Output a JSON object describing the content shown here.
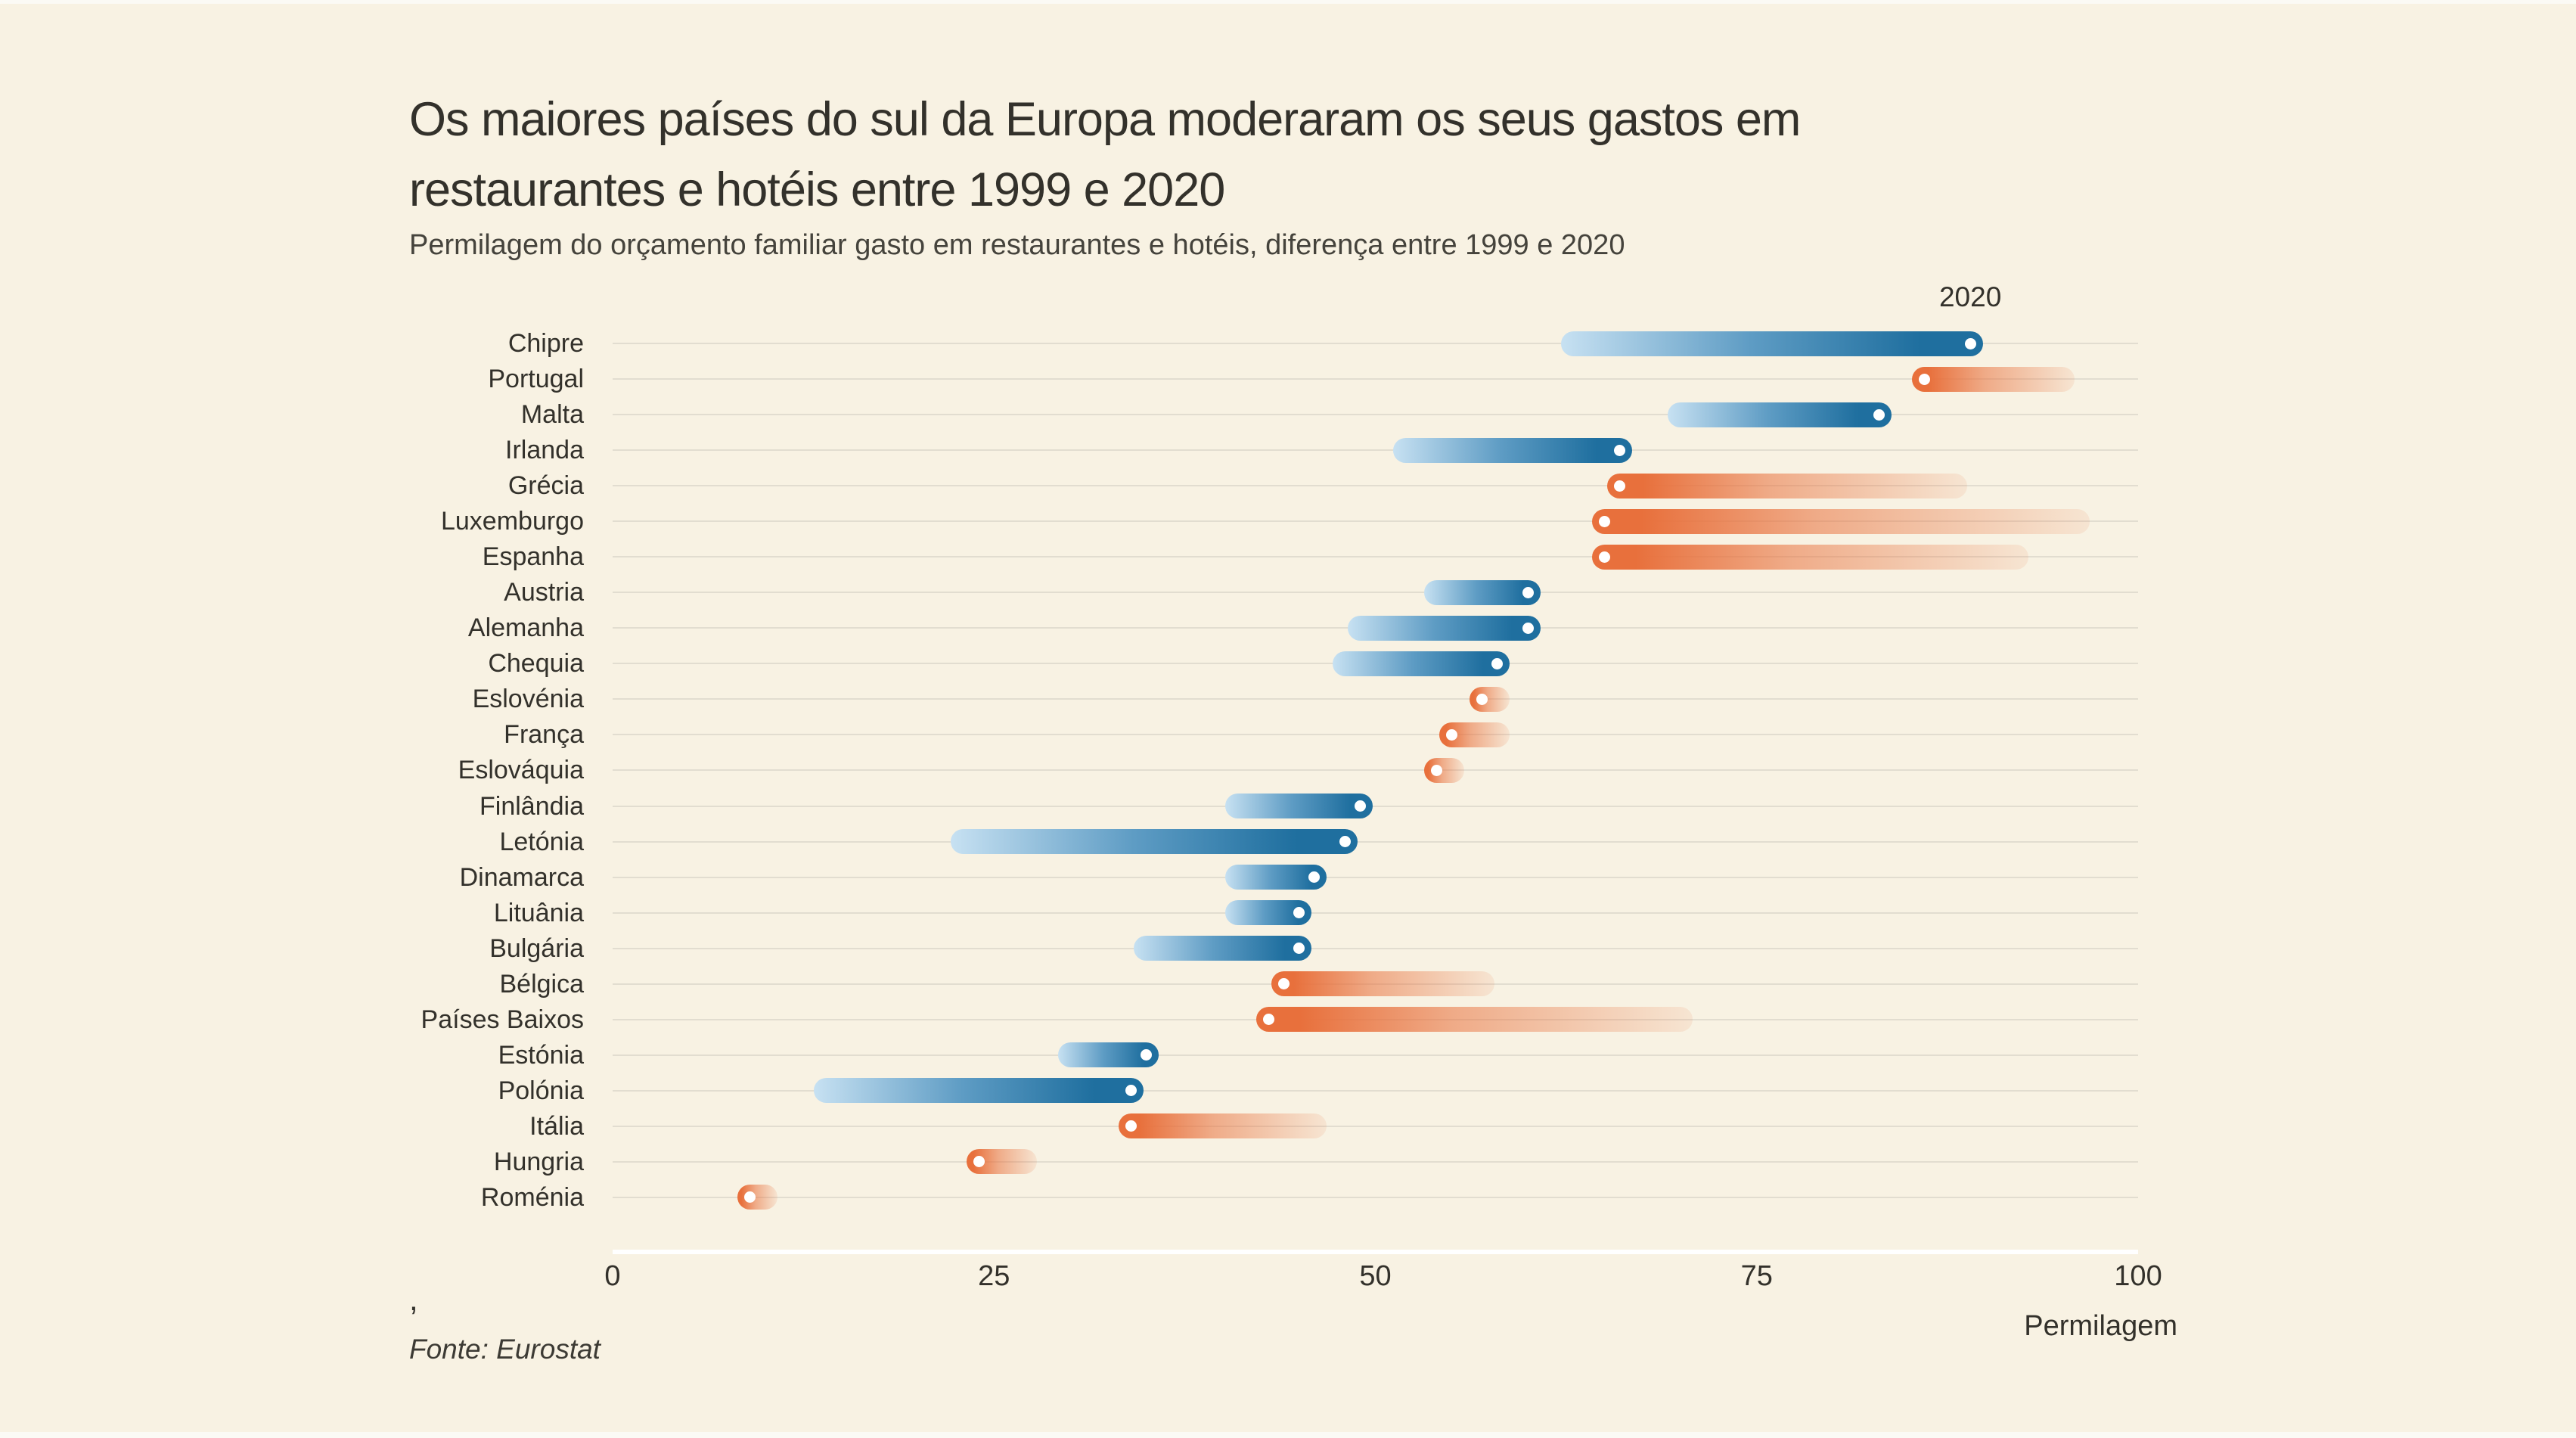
{
  "title": {
    "line1": "Os maiores países do sul da Europa moderaram os seus gastos em",
    "line2": "restaurantes e hotéis entre 1999 e 2020"
  },
  "subtitle": "Permilagem do orçamento familiar gasto em restaurantes e hotéis, diferença entre 1999 e 2020",
  "legend": {
    "year_2020_label": "2020"
  },
  "axis": {
    "tick_values": [
      0,
      25,
      50,
      75,
      100
    ],
    "unit_label": "Permilagem",
    "min": 0,
    "max": 100
  },
  "source": {
    "comma": ",",
    "text": "Fonte: Eurostat"
  },
  "colors": {
    "background": "#f8f2e3",
    "increase_dark": "#1f6f9f",
    "increase_light": "#c7e1f2",
    "decrease_orange": "#e8703c",
    "gridline": "#e2ddd0",
    "axis_line": "#ffffff",
    "text": "#33312b"
  },
  "chart_data": {
    "type": "dumbbell",
    "title": "Os maiores países do sul da Europa moderaram os seus gastos em restaurantes e hotéis entre 1999 e 2020",
    "subtitle": "Permilagem do orçamento familiar gasto em restaurantes e hotéis, diferença entre 1999 e 2020",
    "unit": "permilagem",
    "xlim": [
      0,
      100
    ],
    "grid": "horizontal",
    "years": [
      "1999",
      "2020"
    ],
    "dot_marks_year": "2020",
    "countries": [
      {
        "label": "Chipre",
        "y1999": 63,
        "y2020": 89
      },
      {
        "label": "Portugal",
        "y1999": 95,
        "y2020": 86
      },
      {
        "label": "Malta",
        "y1999": 70,
        "y2020": 83
      },
      {
        "label": "Irlanda",
        "y1999": 52,
        "y2020": 66
      },
      {
        "label": "Grécia",
        "y1999": 88,
        "y2020": 66
      },
      {
        "label": "Luxemburgo",
        "y1999": 96,
        "y2020": 65
      },
      {
        "label": "Espanha",
        "y1999": 92,
        "y2020": 65
      },
      {
        "label": "Austria",
        "y1999": 54,
        "y2020": 60
      },
      {
        "label": "Alemanha",
        "y1999": 49,
        "y2020": 60
      },
      {
        "label": "Chequia",
        "y1999": 48,
        "y2020": 58
      },
      {
        "label": "Eslovénia",
        "y1999": 58,
        "y2020": 57
      },
      {
        "label": "França",
        "y1999": 58,
        "y2020": 55
      },
      {
        "label": "Eslováquia",
        "y1999": 55,
        "y2020": 54
      },
      {
        "label": "Finlândia",
        "y1999": 41,
        "y2020": 49
      },
      {
        "label": "Letónia",
        "y1999": 23,
        "y2020": 48
      },
      {
        "label": "Dinamarca",
        "y1999": 41,
        "y2020": 46
      },
      {
        "label": "Lituânia",
        "y1999": 41,
        "y2020": 45
      },
      {
        "label": "Bulgária",
        "y1999": 35,
        "y2020": 45
      },
      {
        "label": "Bélgica",
        "y1999": 57,
        "y2020": 44
      },
      {
        "label": "Países Baixos",
        "y1999": 70,
        "y2020": 43
      },
      {
        "label": "Estónia",
        "y1999": 30,
        "y2020": 35
      },
      {
        "label": "Polónia",
        "y1999": 14,
        "y2020": 34
      },
      {
        "label": "Itália",
        "y1999": 46,
        "y2020": 34
      },
      {
        "label": "Hungria",
        "y1999": 27,
        "y2020": 24
      },
      {
        "label": "Roménia",
        "y1999": 10,
        "y2020": 9
      }
    ]
  }
}
